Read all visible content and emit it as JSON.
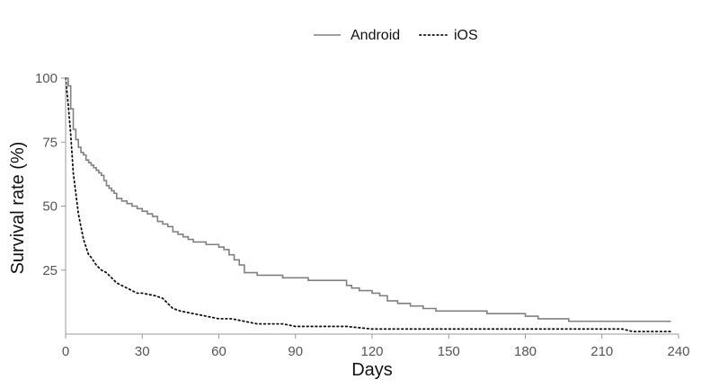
{
  "chart_data": {
    "type": "line",
    "xlabel": "Days",
    "ylabel": "Survival rate  (%)",
    "xlim": [
      0,
      240
    ],
    "ylim": [
      0,
      100
    ],
    "xticks": [
      0,
      30,
      60,
      90,
      120,
      150,
      180,
      210,
      240
    ],
    "yticks": [
      25,
      50,
      75,
      100
    ],
    "grid": false,
    "legend_position": "top-center",
    "series": [
      {
        "name": "Android",
        "color": "#808080",
        "style": "solid-step",
        "x": [
          0,
          1,
          2,
          3,
          4,
          5,
          6,
          7,
          8,
          9,
          10,
          11,
          12,
          13,
          14,
          15,
          16,
          17,
          18,
          19,
          20,
          22,
          24,
          26,
          28,
          30,
          32,
          34,
          36,
          38,
          40,
          42,
          44,
          46,
          48,
          50,
          55,
          60,
          62,
          64,
          66,
          68,
          70,
          75,
          85,
          95,
          105,
          110,
          112,
          115,
          120,
          123,
          126,
          130,
          135,
          140,
          145,
          155,
          165,
          175,
          180,
          185,
          197,
          210,
          225,
          237
        ],
        "y": [
          100,
          97,
          88,
          80,
          76,
          73,
          71,
          70,
          68,
          67,
          66,
          65,
          64,
          63,
          62,
          60,
          58,
          57,
          56,
          55,
          53,
          52,
          51,
          50,
          49,
          48,
          47,
          46,
          44,
          43,
          42,
          40,
          39,
          38,
          37,
          36,
          35,
          34,
          33,
          31,
          29,
          27,
          24,
          23,
          22,
          21,
          21,
          19,
          18,
          17,
          16,
          15,
          13,
          12,
          11,
          10,
          9,
          9,
          8,
          8,
          7,
          6,
          5,
          5,
          5,
          5
        ]
      },
      {
        "name": "iOS",
        "color": "#111111",
        "style": "dotted",
        "x": [
          0,
          1,
          2,
          3,
          4,
          5,
          6,
          7,
          8,
          9,
          10,
          12,
          14,
          16,
          18,
          20,
          22,
          24,
          26,
          28,
          30,
          35,
          38,
          40,
          42,
          45,
          50,
          55,
          60,
          65,
          70,
          75,
          85,
          90,
          100,
          110,
          120,
          150,
          180,
          210,
          218,
          222,
          237
        ],
        "y": [
          100,
          90,
          78,
          63,
          55,
          47,
          42,
          37,
          34,
          31,
          30,
          27,
          25,
          24,
          22,
          20,
          19,
          18,
          17,
          16,
          16,
          15,
          14,
          12,
          10,
          9,
          8,
          7,
          6,
          6,
          5,
          4,
          4,
          3,
          3,
          3,
          2,
          2,
          2,
          2,
          2,
          1,
          1
        ]
      }
    ]
  }
}
